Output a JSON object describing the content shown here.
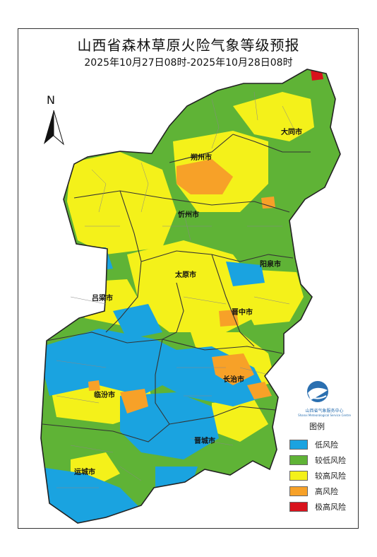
{
  "title": "山西省森林草原火险气象等级预报",
  "subtitle": "2025年10月27日08时-2025年10月28日08时",
  "north_label": "N",
  "legend": {
    "title": "图例",
    "items": [
      {
        "label": "低风险",
        "color": "#1aa3e0"
      },
      {
        "label": "较低风险",
        "color": "#5fb336"
      },
      {
        "label": "较高风险",
        "color": "#f4f11a"
      },
      {
        "label": "高风险",
        "color": "#f7a128"
      },
      {
        "label": "极高风险",
        "color": "#d8121c"
      }
    ]
  },
  "logo": {
    "name": "山西省气象服务中心",
    "name_en": "Shanxi Meteorological Service Centre"
  },
  "cities": [
    {
      "name": "大同市"
    },
    {
      "name": "朔州市"
    },
    {
      "name": "忻州市"
    },
    {
      "name": "阳泉市"
    },
    {
      "name": "太原市"
    },
    {
      "name": "吕梁市"
    },
    {
      "name": "晋中市"
    },
    {
      "name": "长治市"
    },
    {
      "name": "临汾市"
    },
    {
      "name": "晋城市"
    },
    {
      "name": "运城市"
    }
  ]
}
